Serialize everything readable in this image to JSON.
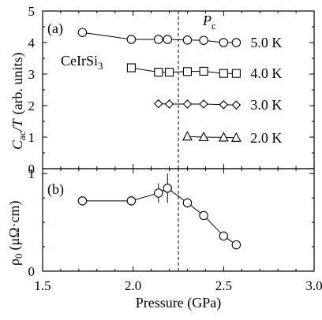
{
  "chart_data": [
    {
      "type": "line",
      "panel_label": "(a)",
      "ylabel_main": "C",
      "ylabel_sub": "ac",
      "ylabel_mid": "/T",
      "ylabel_unit": "(arb. units)",
      "sample_prefix": "CeIrSi",
      "sample_subscript": "3",
      "xlim": [
        1.5,
        3.0
      ],
      "ylim": [
        0,
        5
      ],
      "yticks": [
        "0",
        "1",
        "2",
        "3",
        "4",
        "5"
      ],
      "grid": false,
      "series": [
        {
          "name": "5.0 K",
          "marker": "circle",
          "x": [
            1.72,
            1.99,
            2.14,
            2.19,
            2.3,
            2.39,
            2.5,
            2.57
          ],
          "y": [
            4.32,
            4.1,
            4.1,
            4.1,
            4.08,
            4.07,
            4.0,
            4.0
          ]
        },
        {
          "name": "4.0 K",
          "marker": "square",
          "x": [
            1.99,
            2.14,
            2.2,
            2.3,
            2.39,
            2.5,
            2.57
          ],
          "y": [
            3.2,
            3.06,
            3.06,
            3.08,
            3.09,
            3.02,
            3.02
          ]
        },
        {
          "name": "3.0 K",
          "marker": "diamond",
          "x": [
            2.14,
            2.2,
            2.3,
            2.39,
            2.5,
            2.57
          ],
          "y": [
            2.06,
            2.05,
            2.05,
            2.05,
            2.03,
            2.02
          ]
        },
        {
          "name": "2.0 K",
          "marker": "triangle",
          "x": [
            2.3,
            2.39,
            2.5,
            2.57
          ],
          "y": [
            1.02,
            1.0,
            0.99,
            0.98
          ]
        }
      ],
      "annotation_pc_main": "P",
      "annotation_pc_sub": "c",
      "pc": 2.25
    },
    {
      "type": "scatter",
      "panel_label": "(b)",
      "ylabel": "ρ",
      "ylabel_sub": "0",
      "ylabel_unit": "(μΩ·cm)",
      "xlabel": "Pressure (GPa)",
      "xlim": [
        1.5,
        3.0
      ],
      "xticks": [
        "1.5",
        "2.0",
        "2.5",
        "3.0"
      ],
      "ylim": [
        0,
        1.05
      ],
      "yticks": [
        "0",
        "1"
      ],
      "grid": false,
      "series": [
        {
          "marker": "circle",
          "x": [
            1.72,
            1.99,
            2.14,
            2.19,
            2.3,
            2.39,
            2.5,
            2.57
          ],
          "y": [
            0.72,
            0.72,
            0.8,
            0.85,
            0.7,
            0.57,
            0.36,
            0.27
          ],
          "yerr": [
            0.0,
            0.05,
            0.1,
            0.15,
            0.05,
            0.0,
            0.0,
            0.0
          ]
        }
      ],
      "pc": 2.25
    }
  ]
}
